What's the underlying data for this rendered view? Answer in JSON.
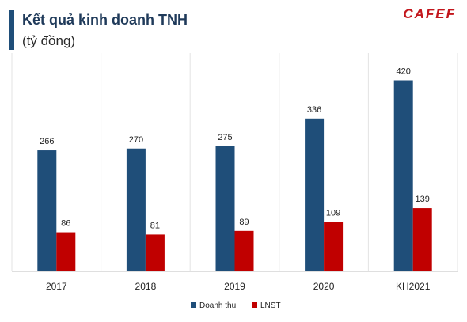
{
  "header": {
    "title": "Kết quả kinh doanh TNH",
    "subtitle": "(tỷ đồng)",
    "logo": "CAFEF"
  },
  "chart_data": {
    "type": "bar",
    "title": "Kết quả kinh doanh TNH",
    "subtitle": "(tỷ đồng)",
    "categories": [
      "2017",
      "2018",
      "2019",
      "2020",
      "KH2021"
    ],
    "series": [
      {
        "name": "Doanh thu",
        "values": [
          266,
          270,
          275,
          336,
          420
        ],
        "color": "#1f4e79"
      },
      {
        "name": "LNST",
        "values": [
          86,
          81,
          89,
          109,
          139
        ],
        "color": "#c00000"
      }
    ],
    "ylim": [
      0,
      480
    ],
    "grid": false,
    "legend": "bottom-center"
  }
}
